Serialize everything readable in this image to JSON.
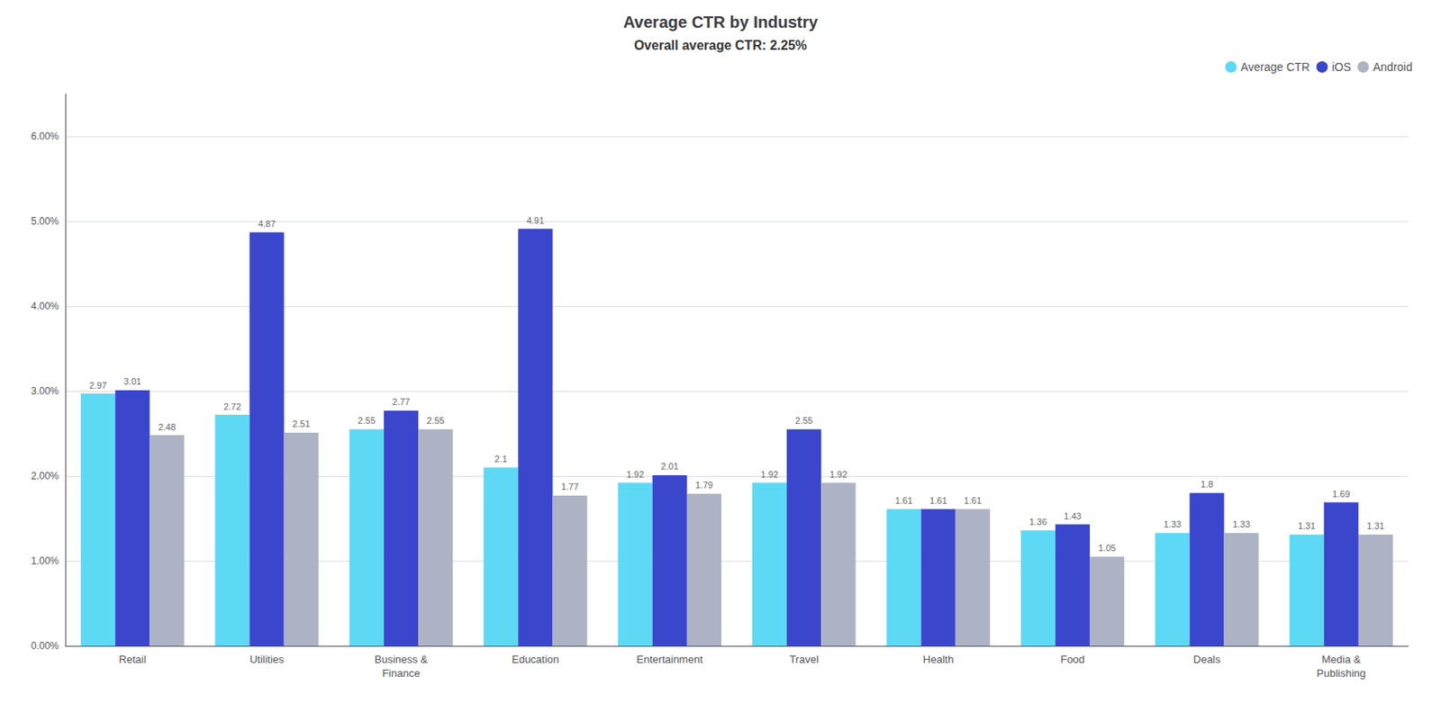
{
  "chart_data": {
    "type": "bar",
    "title": "Average CTR by Industry",
    "subtitle": "Overall average CTR: 2.25%",
    "categories": [
      "Retail",
      "Utilities",
      "Business &\nFinance",
      "Education",
      "Entertainment",
      "Travel",
      "Health",
      "Food",
      "Deals",
      "Media &\nPublishing"
    ],
    "series": [
      {
        "name": "Average CTR",
        "color": "#5dd9f5",
        "values": [
          2.97,
          2.72,
          2.55,
          2.1,
          1.92,
          1.92,
          1.61,
          1.36,
          1.33,
          1.31
        ]
      },
      {
        "name": "iOS",
        "color": "#3a46cc",
        "values": [
          3.01,
          4.87,
          2.77,
          4.91,
          2.01,
          2.55,
          1.61,
          1.43,
          1.8,
          1.69
        ]
      },
      {
        "name": "Android",
        "color": "#adb3c4",
        "values": [
          2.48,
          2.51,
          2.55,
          1.77,
          1.79,
          1.92,
          1.61,
          1.05,
          1.33,
          1.31
        ]
      }
    ],
    "ylim": [
      0,
      6.5
    ],
    "yticks": [
      {
        "value": 0,
        "label": "0.00%"
      },
      {
        "value": 1,
        "label": "1.00%"
      },
      {
        "value": 2,
        "label": "2.00%"
      },
      {
        "value": 3,
        "label": "3.00%"
      },
      {
        "value": 4,
        "label": "4.00%"
      },
      {
        "value": 5,
        "label": "5.00%"
      },
      {
        "value": 6,
        "label": "6.00%"
      }
    ],
    "grid": true,
    "legend": "upper right",
    "data_labels": true
  }
}
